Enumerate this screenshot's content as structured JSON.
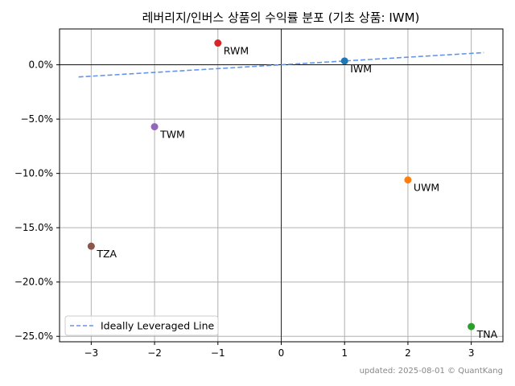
{
  "chart_data": {
    "type": "scatter",
    "title": "레버리지/인버스 상품의 수익률 분포 (기초 상품: IWM)",
    "xlabel": "",
    "ylabel": "",
    "xlim": [
      -3.5,
      3.5
    ],
    "ylim": [
      -25.5,
      3.3
    ],
    "x_ticks": [
      -3,
      -2,
      -1,
      0,
      1,
      2,
      3
    ],
    "x_tick_labels": [
      "−3",
      "−2",
      "−1",
      "0",
      "1",
      "2",
      "3"
    ],
    "y_ticks": [
      0,
      -5,
      -10,
      -15,
      -20,
      -25
    ],
    "y_tick_labels": [
      "0.0%",
      "−5.0%",
      "−10.0%",
      "−15.0%",
      "−20.0%",
      "−25.0%"
    ],
    "grid": true,
    "points": [
      {
        "label": "IWM",
        "x": 1,
        "y": 0.35,
        "color": "#1f77b4"
      },
      {
        "label": "UWM",
        "x": 2,
        "y": -10.6,
        "color": "#ff7f0e"
      },
      {
        "label": "TNA",
        "x": 3,
        "y": -24.1,
        "color": "#2ca02c"
      },
      {
        "label": "RWM",
        "x": -1,
        "y": 2.0,
        "color": "#d62728"
      },
      {
        "label": "TWM",
        "x": -2,
        "y": -5.7,
        "color": "#9467bd"
      },
      {
        "label": "TZA",
        "x": -3,
        "y": -16.7,
        "color": "#8c564b"
      }
    ],
    "reference_line": {
      "name": "Ideally Leveraged Line",
      "x": [
        -3.2,
        3.2
      ],
      "y": [
        -1.12,
        1.12
      ],
      "color": "#6495ED",
      "style": "dashed"
    },
    "legend": {
      "position": "bottom-left",
      "entries": [
        "Ideally Leveraged Line"
      ]
    },
    "footer": "updated: 2025-08-01 © QuantKang"
  }
}
